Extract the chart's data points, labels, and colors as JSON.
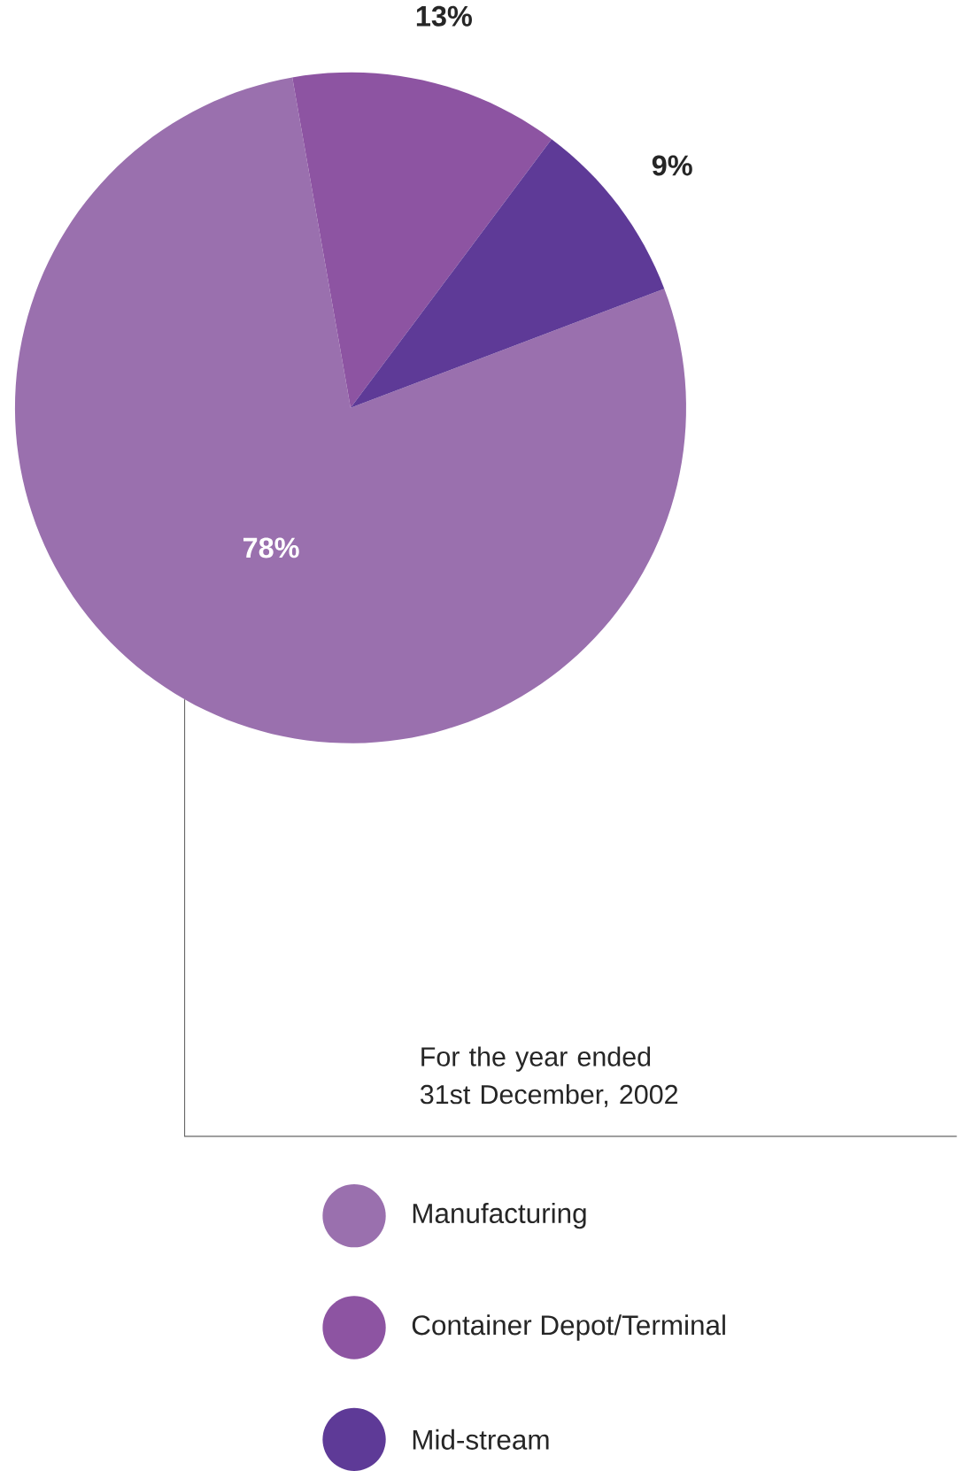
{
  "chart_data": {
    "type": "pie",
    "categories": [
      "Manufacturing",
      "Container Depot/Terminal",
      "Mid-stream"
    ],
    "values": [
      78,
      13,
      9
    ],
    "colors": [
      "#9a70ae",
      "#8d54a2",
      "#5e3a97"
    ],
    "value_labels": [
      "78%",
      "13%",
      "9%"
    ],
    "legend": "bottom",
    "annotations": [
      "For the year ended\n31st December, 2002"
    ]
  }
}
